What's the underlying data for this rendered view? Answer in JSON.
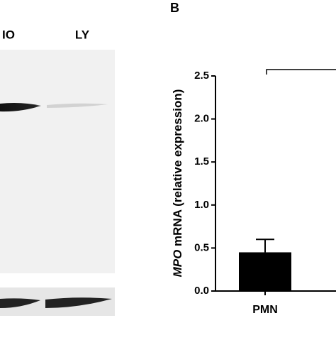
{
  "blot": {
    "lanes": [
      "IO",
      "LY"
    ]
  },
  "chart_data": {
    "type": "bar",
    "panel_label": "B",
    "y_label_italic": "MPO",
    "y_label": "mRNA (relative expression)",
    "categories": [
      "PMN"
    ],
    "values": [
      0.45
    ],
    "errors": [
      0.15
    ],
    "color": "#000000",
    "ylim": [
      0,
      2.5
    ],
    "yticks": [
      {
        "value": 0,
        "label": "0.0"
      },
      0.5,
      {
        "value": 1,
        "label": "1.0"
      },
      1.5,
      {
        "value": 2,
        "label": "2.0"
      },
      2.5
    ]
  }
}
